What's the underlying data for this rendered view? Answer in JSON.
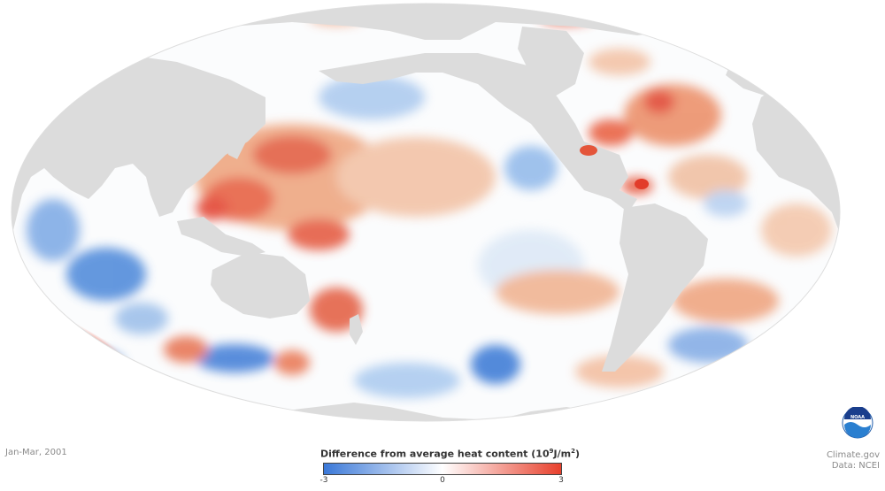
{
  "period": "Jan-Mar, 2001",
  "legend": {
    "title_prefix": "Difference from average heat content (10",
    "title_sup1": "9",
    "title_mid": "J/m",
    "title_sup2": "2",
    "title_suffix": ")",
    "min_label": "-3",
    "mid_label": "0",
    "max_label": "3",
    "colors": {
      "negative": "#3a78d8",
      "neutral": "#ffffff",
      "positive": "#e8402c"
    }
  },
  "credits": {
    "site": "Climate.gov",
    "data_source": "Data: NCEI"
  },
  "logo_text": "NOAA",
  "map_colors": {
    "land": "#dedede",
    "ocean": "#fdfdfd",
    "warm": "#e8502f",
    "cool": "#3b7bd6"
  }
}
